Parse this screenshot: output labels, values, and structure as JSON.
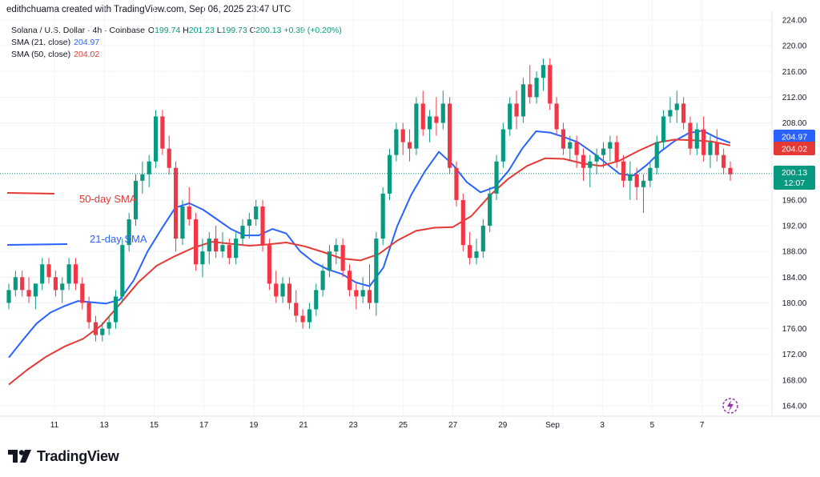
{
  "header": {
    "attribution": "edithchuama created with TradingView.com, Sep 06, 2025 23:47 UTC"
  },
  "legend": {
    "symbol": "Solana / U.S. Dollar · 4h · Coinbase",
    "open_label": "O",
    "open": "199.74",
    "high_label": "H",
    "high": "201.23",
    "low_label": "L",
    "low": "199.73",
    "close_label": "C",
    "close": "200.13",
    "change": "+0.39 (+0.20%)",
    "sma21_label": "SMA (21, close)",
    "sma21_value": "204.97",
    "sma50_label": "SMA (50, close)",
    "sma50_value": "204.02"
  },
  "annotations": {
    "sma50_text": "50-day SMA",
    "sma21_text": "21-day SMA"
  },
  "price_tags": {
    "sma21": "204.97",
    "sma50": "204.02",
    "last_price": "200.13",
    "countdown": "12:07"
  },
  "footer": {
    "brand": "TradingView"
  },
  "colors": {
    "up": "#089981",
    "down": "#f23645",
    "sma21": "#2962ff",
    "sma50": "#e53935",
    "grid": "#f0f3fa",
    "text": "#131722"
  },
  "chart_data": {
    "type": "candlestick",
    "title": "Solana / U.S. Dollar · 4h · Coinbase",
    "y_ticks": [
      164,
      168,
      172,
      176,
      180,
      184,
      188,
      192,
      196,
      200,
      204,
      208,
      212,
      216,
      220,
      224
    ],
    "y_tick_labels": [
      "164.00",
      "168.00",
      "172.00",
      "176.00",
      "180.00",
      "184.00",
      "188.00",
      "192.00",
      "196.00",
      "200.00",
      "204.00",
      "208.00",
      "212.00",
      "216.00",
      "220.00",
      "224.00"
    ],
    "ylim": [
      162,
      226
    ],
    "x_ticks": [
      "11",
      "13",
      "15",
      "17",
      "19",
      "21",
      "23",
      "25",
      "27",
      "29",
      "Sep",
      "3",
      "5",
      "7"
    ],
    "candles": [
      [
        180,
        183,
        179,
        182
      ],
      [
        182,
        185,
        181,
        184
      ],
      [
        184,
        185,
        181,
        182
      ],
      [
        182,
        184,
        180,
        181
      ],
      [
        181,
        183,
        179,
        183
      ],
      [
        183,
        187,
        182,
        186
      ],
      [
        186,
        187,
        183,
        184
      ],
      [
        184,
        185,
        181,
        182
      ],
      [
        182,
        184,
        180,
        183
      ],
      [
        183,
        187,
        182,
        186
      ],
      [
        186,
        187,
        182,
        183
      ],
      [
        183,
        184,
        179,
        180
      ],
      [
        180,
        181,
        176,
        177
      ],
      [
        177,
        178,
        174,
        175
      ],
      [
        175,
        177,
        174,
        176
      ],
      [
        176,
        178,
        175,
        177
      ],
      [
        177,
        182,
        176,
        181
      ],
      [
        181,
        190,
        180,
        189
      ],
      [
        189,
        194,
        188,
        193
      ],
      [
        193,
        200,
        192,
        199
      ],
      [
        199,
        202,
        197,
        200
      ],
      [
        200,
        203,
        198,
        202
      ],
      [
        202,
        210,
        201,
        209
      ],
      [
        209,
        210,
        203,
        204
      ],
      [
        204,
        206,
        200,
        201
      ],
      [
        201,
        202,
        188,
        190
      ],
      [
        190,
        196,
        189,
        195
      ],
      [
        195,
        198,
        192,
        193
      ],
      [
        193,
        194,
        185,
        186
      ],
      [
        186,
        190,
        184,
        188
      ],
      [
        188,
        191,
        186,
        190
      ],
      [
        190,
        192,
        187,
        188
      ],
      [
        188,
        191,
        187,
        189
      ],
      [
        189,
        190,
        186,
        187
      ],
      [
        187,
        191,
        186,
        190
      ],
      [
        190,
        193,
        189,
        192
      ],
      [
        192,
        194,
        190,
        193
      ],
      [
        193,
        196,
        192,
        195
      ],
      [
        195,
        196,
        188,
        189
      ],
      [
        189,
        190,
        182,
        183
      ],
      [
        183,
        185,
        180,
        181
      ],
      [
        181,
        184,
        180,
        183
      ],
      [
        183,
        184,
        179,
        180
      ],
      [
        180,
        182,
        177,
        178
      ],
      [
        178,
        179,
        176,
        177
      ],
      [
        177,
        180,
        176,
        179
      ],
      [
        179,
        183,
        178,
        182
      ],
      [
        182,
        186,
        181,
        185
      ],
      [
        185,
        189,
        184,
        188
      ],
      [
        188,
        190,
        186,
        189
      ],
      [
        189,
        190,
        184,
        185
      ],
      [
        185,
        186,
        181,
        182
      ],
      [
        182,
        183,
        179,
        181
      ],
      [
        181,
        184,
        180,
        182
      ],
      [
        182,
        186,
        179,
        180
      ],
      [
        180,
        191,
        178,
        190
      ],
      [
        190,
        198,
        189,
        197
      ],
      [
        197,
        204,
        196,
        203
      ],
      [
        203,
        208,
        202,
        207
      ],
      [
        207,
        208,
        203,
        205
      ],
      [
        205,
        207,
        202,
        204
      ],
      [
        204,
        212,
        203,
        211
      ],
      [
        211,
        213,
        206,
        207
      ],
      [
        207,
        210,
        205,
        209
      ],
      [
        209,
        212,
        206,
        208
      ],
      [
        208,
        213,
        207,
        211
      ],
      [
        211,
        212,
        200,
        201
      ],
      [
        201,
        202,
        195,
        196
      ],
      [
        196,
        197,
        188,
        189
      ],
      [
        189,
        191,
        186,
        187
      ],
      [
        187,
        190,
        186,
        188
      ],
      [
        188,
        193,
        187,
        192
      ],
      [
        192,
        198,
        191,
        197
      ],
      [
        197,
        203,
        196,
        202
      ],
      [
        202,
        208,
        201,
        207
      ],
      [
        207,
        212,
        206,
        211
      ],
      [
        211,
        213,
        207,
        209
      ],
      [
        209,
        215,
        208,
        214
      ],
      [
        214,
        217,
        211,
        212
      ],
      [
        212,
        216,
        211,
        215
      ],
      [
        215,
        218,
        213,
        217
      ],
      [
        217,
        218,
        210,
        211
      ],
      [
        211,
        212,
        206,
        207
      ],
      [
        207,
        208,
        203,
        204
      ],
      [
        204,
        206,
        202,
        205
      ],
      [
        205,
        206,
        201,
        203
      ],
      [
        203,
        204,
        199,
        201
      ],
      [
        201,
        203,
        198,
        202
      ],
      [
        202,
        204,
        200,
        203
      ],
      [
        203,
        205,
        201,
        204
      ],
      [
        204,
        206,
        202,
        205
      ],
      [
        205,
        206,
        201,
        202
      ],
      [
        202,
        203,
        198,
        199
      ],
      [
        199,
        202,
        196,
        200
      ],
      [
        200,
        201,
        196,
        198
      ],
      [
        198,
        200,
        194,
        199
      ],
      [
        199,
        202,
        198,
        201
      ],
      [
        201,
        206,
        200,
        205
      ],
      [
        205,
        210,
        204,
        209
      ],
      [
        209,
        212,
        208,
        210
      ],
      [
        210,
        213,
        208,
        211
      ],
      [
        211,
        212,
        207,
        208
      ],
      [
        208,
        209,
        203,
        204
      ],
      [
        204,
        208,
        203,
        207
      ],
      [
        207,
        209,
        202,
        203
      ],
      [
        203,
        206,
        201,
        205
      ],
      [
        205,
        207,
        202,
        203
      ],
      [
        203,
        204,
        200,
        201
      ],
      [
        201,
        202,
        199,
        200
      ]
    ],
    "series": [
      {
        "name": "SMA (21, close)",
        "color": "#2962ff",
        "values": [
          171.5,
          174.2,
          176.8,
          178.5,
          179.5,
          180.3,
          180.1,
          179.9,
          180.5,
          183.5,
          188,
          191.5,
          194.8,
          195.5,
          194.5,
          193,
          191.5,
          190.5,
          190.5,
          191.5,
          190.8,
          188,
          186.3,
          185.2,
          184.5,
          183.2,
          182.6,
          185.5,
          192,
          196.8,
          200.5,
          203.5,
          201.5,
          198.8,
          197.2,
          198,
          200.5,
          204,
          206.7,
          206.5,
          205.8,
          205,
          203.5,
          201.8,
          200.1,
          199.8,
          201.5,
          203.6,
          205.2,
          206.4,
          206.8,
          205.7,
          204.9
        ]
      },
      {
        "name": "SMA (50, close)",
        "color": "#e53935",
        "values": [
          167.3,
          169.6,
          171.6,
          173.2,
          174.4,
          176.5,
          179.8,
          183.2,
          185.8,
          187.3,
          188.6,
          189.5,
          189.2,
          188.9,
          189.1,
          189.4,
          188.8,
          187.9,
          186.9,
          186.6,
          187.6,
          189.7,
          191.2,
          191.7,
          191.8,
          193.5,
          196.7,
          199.3,
          201.3,
          202.5,
          202.4,
          201.7,
          201.3,
          202.1,
          203.6,
          204.9,
          205.4,
          205.3,
          205.1,
          204.5
        ]
      }
    ]
  }
}
